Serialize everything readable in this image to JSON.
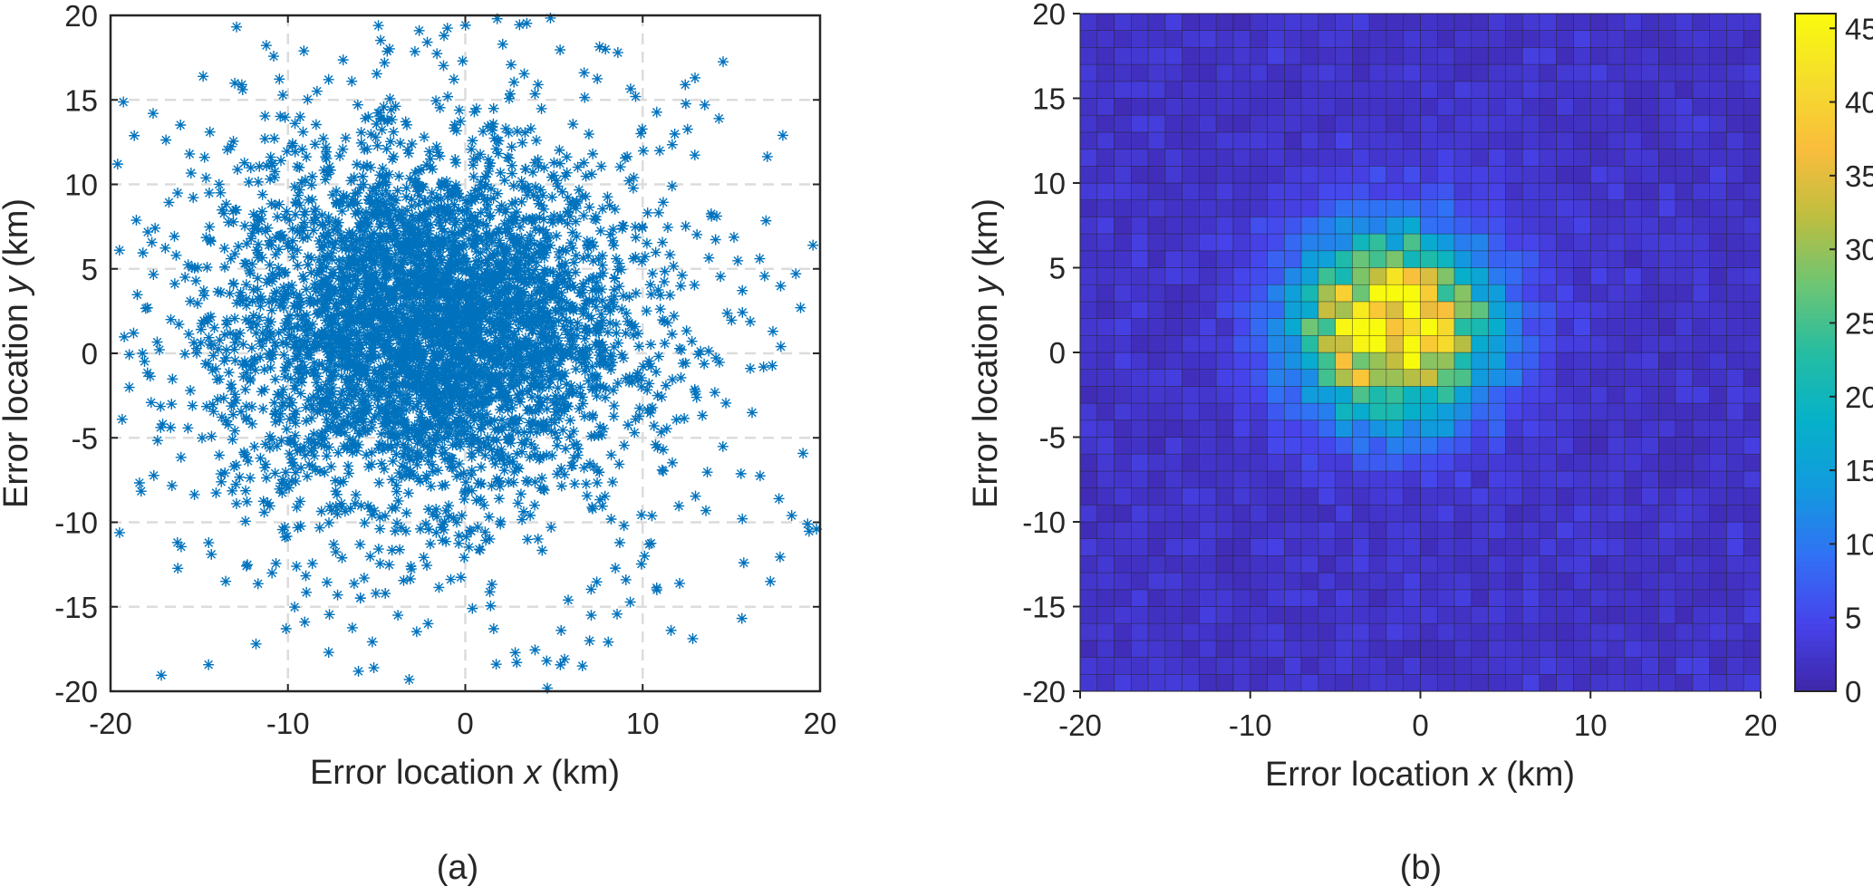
{
  "chart_data": [
    {
      "type": "scatter",
      "xlabel_pre": "Error location ",
      "xlabel_var": "x",
      "xlabel_post": " (km)",
      "ylabel_pre": "Error location ",
      "ylabel_var": "y",
      "ylabel_post": " (km)",
      "xlim": [
        -20,
        20
      ],
      "ylim": [
        -20,
        20
      ],
      "xticks": [
        -20,
        -10,
        0,
        10,
        20
      ],
      "yticks": [
        -20,
        -15,
        -10,
        -5,
        0,
        5,
        10,
        15,
        20
      ],
      "xtick_labels": [
        "-20",
        "-10",
        "0",
        "10",
        "20"
      ],
      "ytick_labels": [
        "-20",
        "-15",
        "-10",
        "-5",
        "0",
        "5",
        "10",
        "15",
        "20"
      ],
      "grid": "dashed",
      "marker": "asterisk",
      "marker_color": "#0072BD",
      "panel_label": "(a)",
      "n_points_shown": "approx 5000",
      "distribution": {
        "center": [
          -2,
          1.5
        ],
        "spread_sd_km": [
          5.5,
          5.0
        ]
      },
      "points": [
        [
          -16.3,
          5.8
        ],
        [
          -19.5,
          6.1
        ],
        [
          -19.6,
          11.2
        ],
        [
          -18.7,
          1.2
        ],
        [
          -18.2,
          0.0
        ],
        [
          -17.6,
          14.2
        ],
        [
          -16.6,
          2.0
        ],
        [
          -15.8,
          4.5
        ],
        [
          -15.5,
          -2.2
        ],
        [
          -14.7,
          11.6
        ],
        [
          -14.4,
          13.1
        ],
        [
          -13.8,
          9.5
        ],
        [
          -13.5,
          -4.0
        ],
        [
          -12.9,
          -8.9
        ],
        [
          -12.6,
          15.9
        ],
        [
          -11.8,
          -17.2
        ],
        [
          -11.3,
          12.7
        ],
        [
          -10.9,
          -13.0
        ],
        [
          -10.1,
          -16.3
        ],
        [
          -9.6,
          13.6
        ],
        [
          -9.1,
          17.9
        ],
        [
          -8.8,
          -6.6
        ],
        [
          -7.7,
          -17.7
        ],
        [
          -7.2,
          -14.3
        ],
        [
          -6.4,
          16.1
        ],
        [
          -5.7,
          -13.3
        ],
        [
          -4.9,
          19.4
        ],
        [
          -3.8,
          -15.5
        ],
        [
          -2.6,
          19.1
        ],
        [
          -2.1,
          -16.0
        ],
        [
          -1.2,
          18.8
        ],
        [
          0.4,
          -15.1
        ],
        [
          1.6,
          -16.3
        ],
        [
          1.8,
          19.8
        ],
        [
          2.9,
          -18.3
        ],
        [
          4.1,
          15.9
        ],
        [
          5.4,
          -16.4
        ],
        [
          5.8,
          -14.6
        ],
        [
          6.6,
          -18.5
        ],
        [
          7.1,
          -15.5
        ],
        [
          7.9,
          18.0
        ],
        [
          8.6,
          17.8
        ],
        [
          9.6,
          15.2
        ],
        [
          10.8,
          -14.0
        ],
        [
          11.6,
          -16.4
        ],
        [
          12.4,
          15.9
        ],
        [
          13.5,
          14.7
        ],
        [
          14.3,
          13.9
        ],
        [
          15.7,
          -12.4
        ],
        [
          16.6,
          5.6
        ],
        [
          17.2,
          -13.5
        ],
        [
          17.9,
          12.9
        ],
        [
          18.4,
          -9.6
        ],
        [
          18.9,
          2.7
        ],
        [
          19.3,
          -10.1
        ],
        [
          19.6,
          6.4
        ],
        [
          19.8,
          -10.4
        ]
      ]
    },
    {
      "type": "heatmap",
      "xlabel_pre": "Error location ",
      "xlabel_var": "x",
      "xlabel_post": " (km)",
      "ylabel_pre": "Error location ",
      "ylabel_var": "y",
      "ylabel_post": " (km)",
      "xlim": [
        -20,
        20
      ],
      "ylim": [
        -20,
        20
      ],
      "xticks": [
        -20,
        -10,
        0,
        10,
        20
      ],
      "yticks": [
        -20,
        -15,
        -10,
        -5,
        0,
        5,
        10,
        15,
        20
      ],
      "xtick_labels": [
        "-20",
        "-10",
        "0",
        "10",
        "20"
      ],
      "ytick_labels": [
        "-20",
        "-15",
        "-10",
        "-5",
        "0",
        "5",
        "10",
        "15",
        "20"
      ],
      "bins": [
        40,
        40
      ],
      "bin_width_km": 1,
      "colormap": "parula",
      "colorbar": {
        "clim": [
          0,
          46
        ],
        "ticks": [
          0,
          5,
          10,
          15,
          20,
          25,
          30,
          35,
          40,
          45
        ],
        "tick_labels": [
          "0",
          "5",
          "10",
          "15",
          "20",
          "25",
          "30",
          "35",
          "40",
          "45"
        ]
      },
      "peak": {
        "x": -1.5,
        "y": 1.5,
        "count": 46
      },
      "distribution": {
        "center": [
          -1.5,
          1.5
        ],
        "spread_sd_km": [
          3.8,
          3.6
        ]
      },
      "panel_label": "(b)"
    }
  ]
}
